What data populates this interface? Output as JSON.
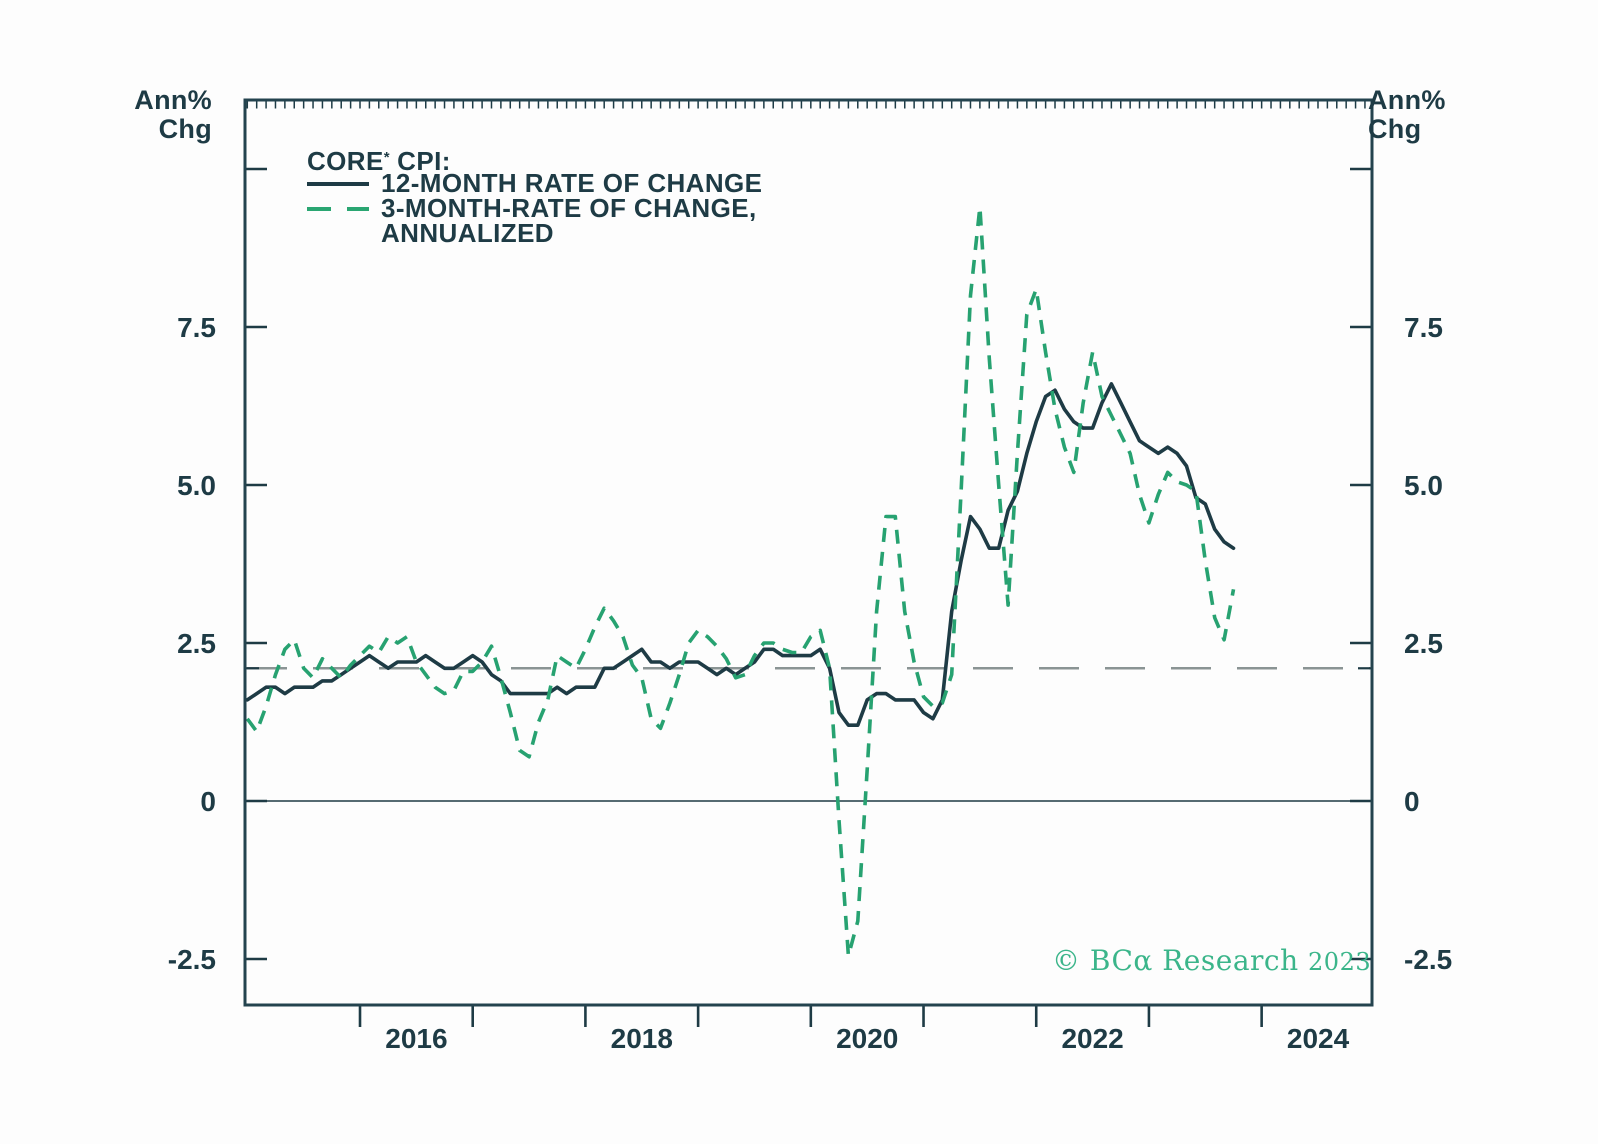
{
  "page": {
    "background": "#fdfdfd"
  },
  "colors": {
    "ink": "#1e3b45",
    "border": "#24434e",
    "line_12m": "#1e3b45",
    "line_3m": "#27a271",
    "reference_gray": "#8a9494",
    "watermark_green": "#3bb58a"
  },
  "axes": {
    "unit_line1": "Ann%",
    "unit_line2": "Chg",
    "y_labels": [
      "7.5",
      "5.0",
      "2.5",
      "0",
      "-2.5"
    ],
    "x_labels": [
      "2016",
      "2018",
      "2020",
      "2022",
      "2024"
    ]
  },
  "legend": {
    "title_main": "CORE",
    "title_asterisk": "*",
    "title_tail": " CPI:",
    "items": [
      {
        "label": "12-MONTH RATE OF CHANGE",
        "style": "solid"
      },
      {
        "label_line1": "3-MONTH-RATE OF CHANGE,",
        "label_line2": "ANNUALIZED",
        "style": "dashed"
      }
    ]
  },
  "watermark": {
    "brand": "© BCα Research",
    "year": "2023"
  },
  "chart_data": {
    "type": "line",
    "title": "Core CPI: 12-month rate of change vs 3-month rate of change annualized",
    "x_unit": "month",
    "x_start": "2015-01",
    "x_end": "2023-10",
    "x_axis": {
      "tick_years": [
        2016,
        2017,
        2018,
        2019,
        2020,
        2021,
        2022,
        2023,
        2024
      ],
      "labeled_years": [
        2016,
        2018,
        2020,
        2022,
        2024
      ],
      "minor_ticks": "monthly-top-border"
    },
    "y_axis": {
      "unit": "Ann% Chg",
      "range": [
        -3.2,
        11.1
      ],
      "ticks": [
        {
          "v": 10.0,
          "label": null
        },
        {
          "v": 7.5,
          "label": "7.5"
        },
        {
          "v": 5.0,
          "label": "5.0"
        },
        {
          "v": 2.5,
          "label": "2.5"
        },
        {
          "v": 0,
          "label": "0"
        },
        {
          "v": -2.5,
          "label": "-2.5"
        }
      ]
    },
    "reference_line": {
      "value": 2.1,
      "style": "long-dash",
      "color": "#8a9494"
    },
    "zero_line": true,
    "legend_position": "top-left-inside",
    "series": [
      {
        "name": "12-MONTH RATE OF CHANGE",
        "line_style": "solid",
        "color": "#1e3b45",
        "values": [
          1.6,
          1.7,
          1.8,
          1.8,
          1.7,
          1.8,
          1.8,
          1.8,
          1.9,
          1.9,
          2.0,
          2.1,
          2.2,
          2.3,
          2.2,
          2.1,
          2.2,
          2.2,
          2.2,
          2.3,
          2.2,
          2.1,
          2.1,
          2.2,
          2.3,
          2.2,
          2.0,
          1.9,
          1.7,
          1.7,
          1.7,
          1.7,
          1.7,
          1.8,
          1.7,
          1.8,
          1.8,
          1.8,
          2.1,
          2.1,
          2.2,
          2.3,
          2.4,
          2.2,
          2.2,
          2.1,
          2.2,
          2.2,
          2.2,
          2.1,
          2.0,
          2.1,
          2.0,
          2.1,
          2.2,
          2.4,
          2.4,
          2.3,
          2.3,
          2.3,
          2.3,
          2.4,
          2.1,
          1.4,
          1.2,
          1.2,
          1.6,
          1.7,
          1.7,
          1.6,
          1.6,
          1.6,
          1.4,
          1.3,
          1.6,
          3.0,
          3.8,
          4.5,
          4.3,
          4.0,
          4.0,
          4.6,
          4.9,
          5.5,
          6.0,
          6.4,
          6.5,
          6.2,
          6.0,
          5.9,
          5.9,
          6.3,
          6.6,
          6.3,
          6.0,
          5.7,
          5.6,
          5.5,
          5.6,
          5.5,
          5.3,
          4.8,
          4.7,
          4.3,
          4.1,
          4.0
        ]
      },
      {
        "name": "3-MONTH-RATE OF CHANGE, ANNUALIZED",
        "line_style": "dashed",
        "color": "#27a271",
        "values": [
          1.3,
          1.1,
          1.5,
          2.0,
          2.4,
          2.55,
          2.1,
          1.95,
          2.25,
          2.1,
          1.95,
          2.15,
          2.3,
          2.45,
          2.35,
          2.6,
          2.5,
          2.6,
          2.2,
          2.0,
          1.8,
          1.7,
          1.75,
          2.05,
          2.05,
          2.2,
          2.45,
          1.95,
          1.4,
          0.8,
          0.7,
          1.25,
          1.6,
          2.3,
          2.2,
          2.1,
          2.4,
          2.75,
          3.05,
          2.85,
          2.6,
          2.15,
          1.95,
          1.3,
          1.15,
          1.55,
          2.0,
          2.5,
          2.7,
          2.6,
          2.45,
          2.25,
          1.95,
          2.0,
          2.3,
          2.5,
          2.5,
          2.4,
          2.35,
          2.35,
          2.6,
          2.7,
          2.1,
          -0.3,
          -2.45,
          -1.9,
          0.5,
          3.0,
          4.5,
          4.5,
          3.0,
          2.2,
          1.65,
          1.5,
          1.55,
          2.0,
          4.9,
          8.0,
          9.4,
          7.0,
          5.0,
          3.1,
          5.5,
          7.7,
          8.1,
          7.1,
          6.2,
          5.6,
          5.2,
          6.3,
          7.1,
          6.4,
          6.1,
          5.8,
          5.5,
          4.85,
          4.4,
          4.85,
          5.2,
          5.05,
          5.0,
          4.9,
          3.8,
          2.9,
          2.55,
          3.35
        ]
      }
    ]
  }
}
